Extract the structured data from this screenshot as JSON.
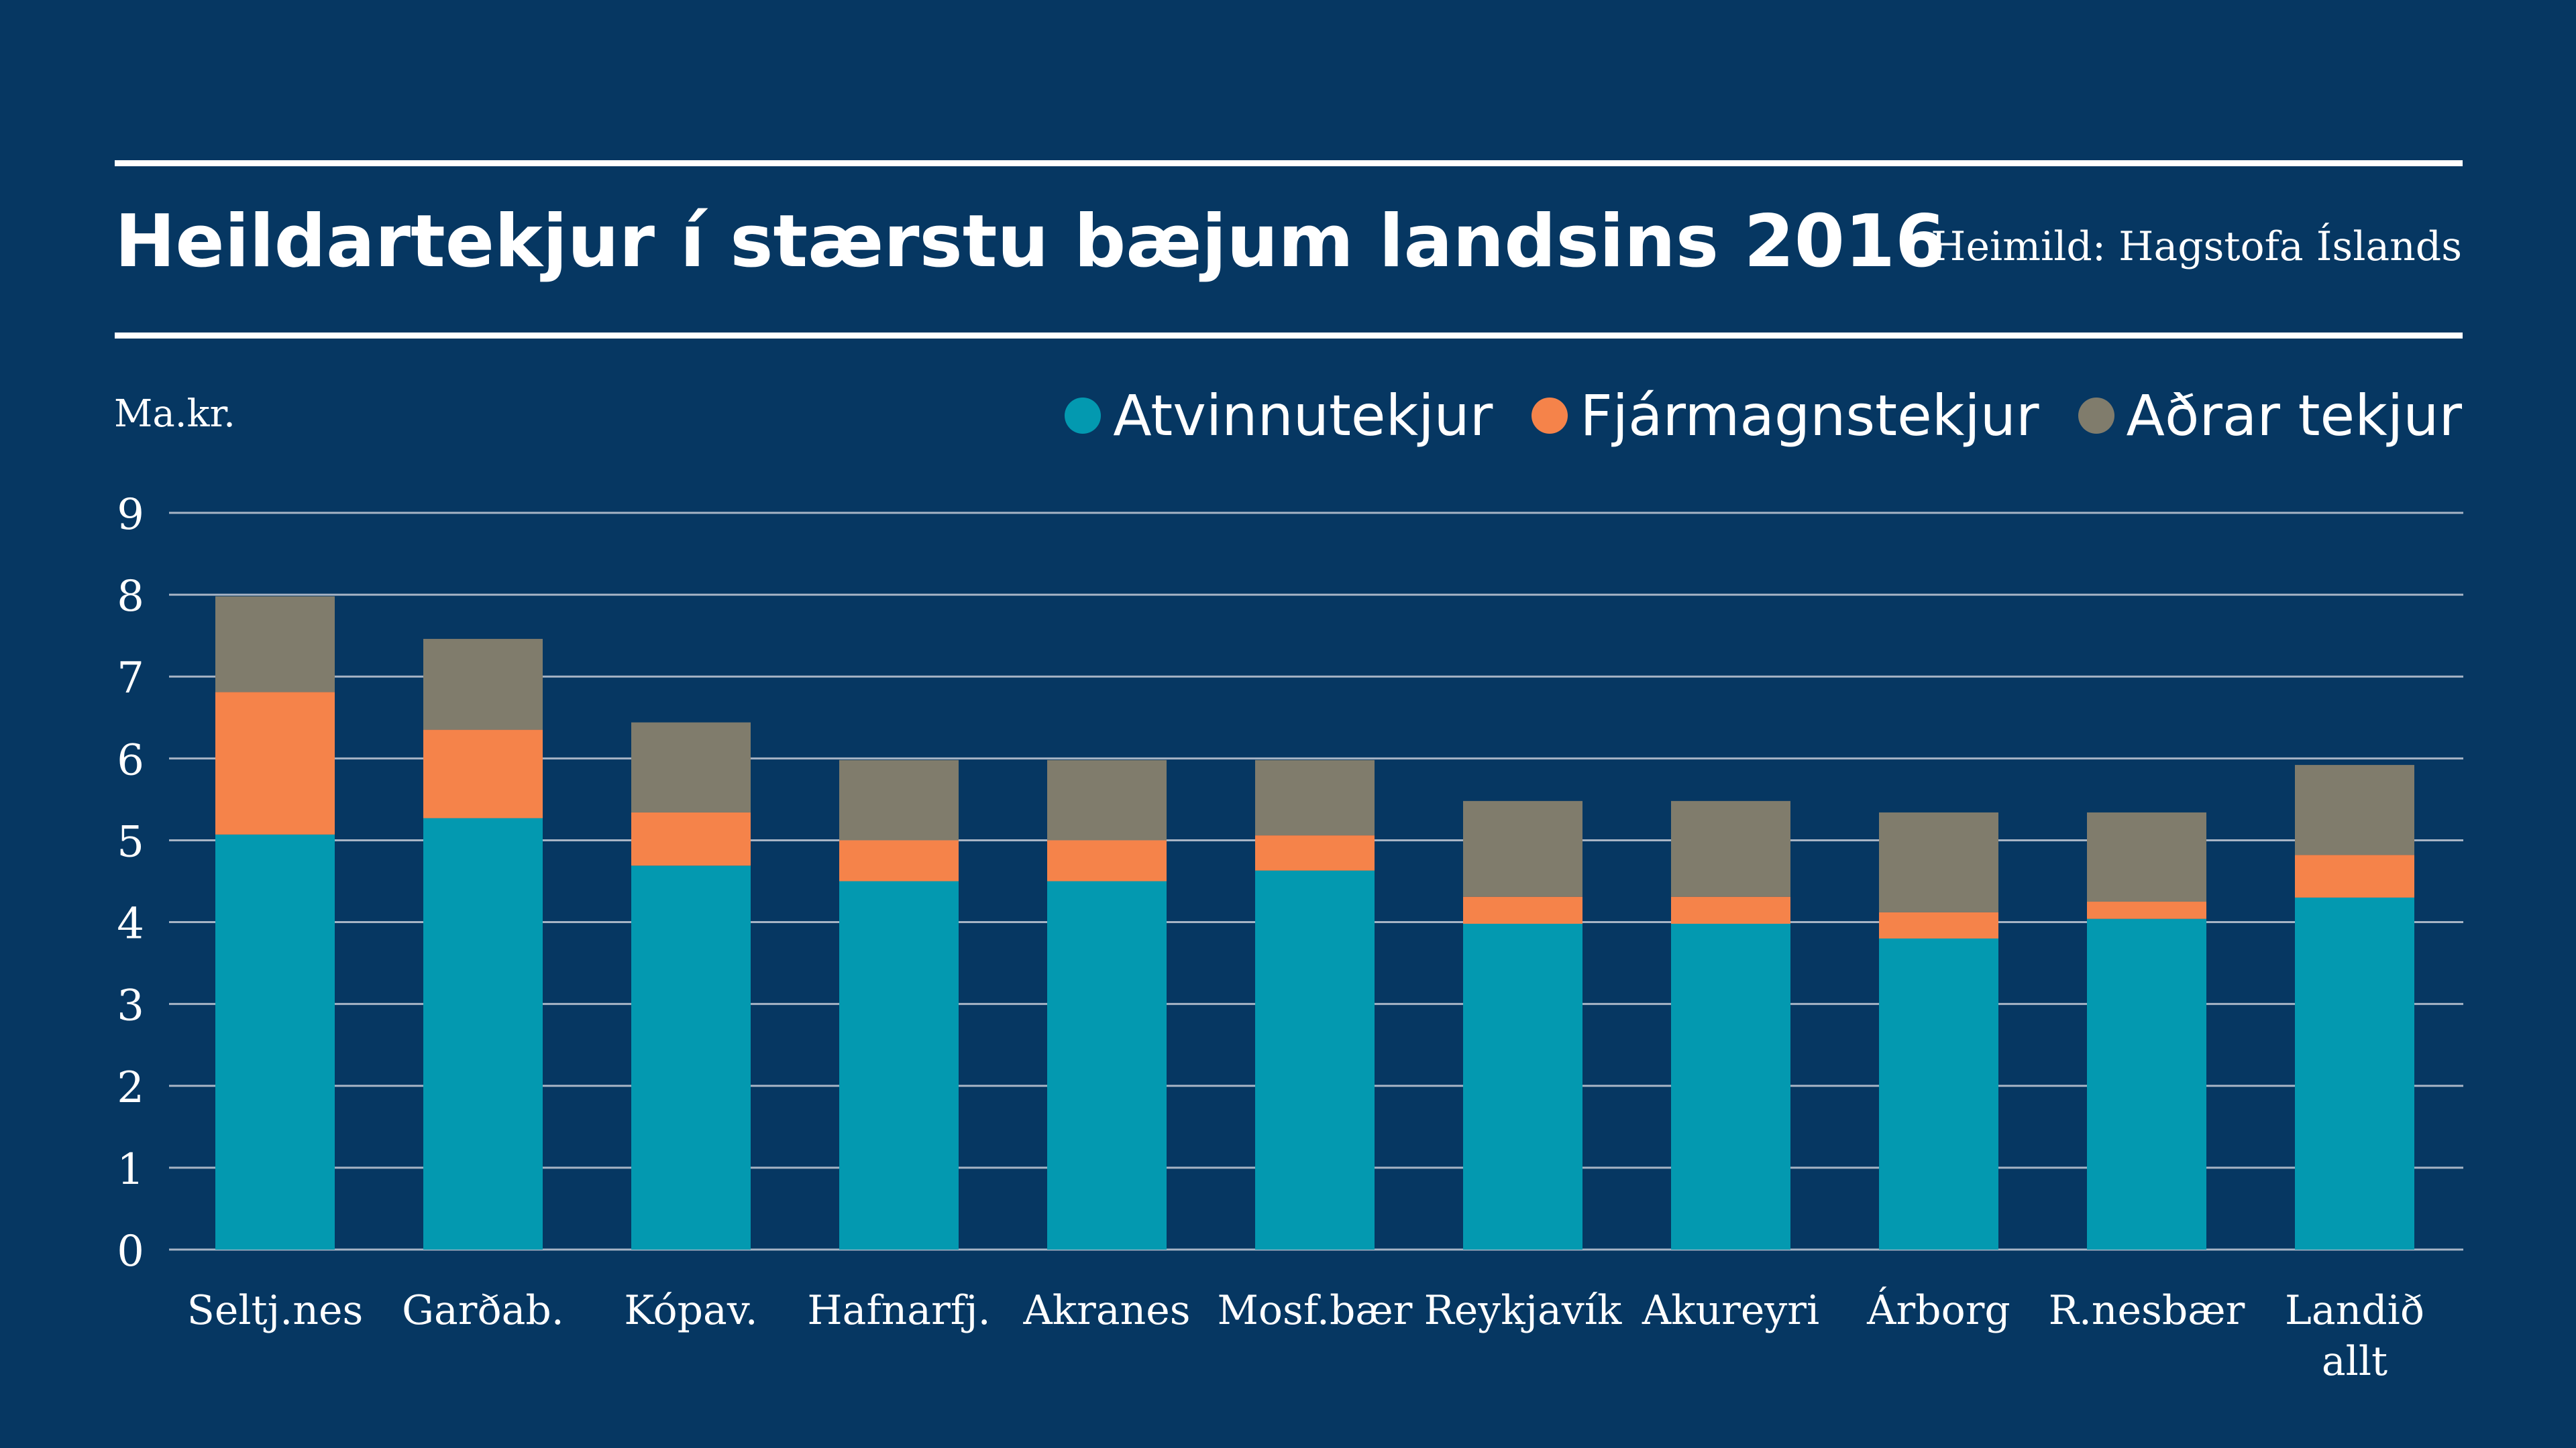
{
  "title": "Heildartekjur í stærstu bæjum landsins 2016",
  "source": "Heimild: Hagstofa Íslands",
  "colors": {
    "background": "#063762",
    "Atvinnutekjur": "#0399b0",
    "Fjármagnstekjur": "#f5834a",
    "Aðrar tekjur": "#807c6c",
    "grid": "#a7b4c5"
  },
  "chart_data": {
    "type": "bar",
    "stacked": true,
    "ylabel": "Ma.kr.",
    "ylim": [
      0,
      9
    ],
    "yticks": [
      0,
      1,
      2,
      3,
      4,
      5,
      6,
      7,
      8,
      9
    ],
    "grid": true,
    "legend_position": "top-right",
    "categories": [
      "Seltj.nes",
      "Garðab.",
      "Kópav.",
      "Hafnarfj.",
      "Akranes",
      "Mosf.bær",
      "Reykjavík",
      "Akureyri",
      "Árborg",
      "R.nesbær",
      "Landið allt"
    ],
    "series": [
      {
        "name": "Atvinnutekjur",
        "values": [
          5.07,
          5.27,
          4.69,
          4.5,
          4.5,
          4.63,
          3.98,
          3.98,
          3.8,
          4.04,
          4.3
        ]
      },
      {
        "name": "Fjármagnstekjur",
        "values": [
          1.74,
          1.08,
          0.65,
          0.5,
          0.5,
          0.43,
          0.33,
          0.33,
          0.32,
          0.21,
          0.52
        ]
      },
      {
        "name": "Aðrar tekjur",
        "values": [
          1.17,
          1.11,
          1.1,
          0.98,
          0.98,
          0.92,
          1.17,
          1.17,
          1.22,
          1.09,
          1.1
        ]
      }
    ]
  }
}
